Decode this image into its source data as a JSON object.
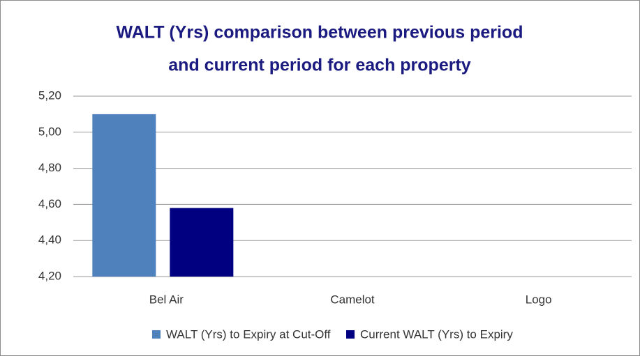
{
  "chart_data": {
    "type": "bar",
    "title": [
      "WALT (Yrs) comparison between previous period",
      "and current period for each property"
    ],
    "categories": [
      "Bel Air",
      "Camelot",
      "Logo"
    ],
    "series": [
      {
        "name": "WALT (Yrs) to Expiry at Cut-Off",
        "color": "#4f81bd",
        "values": [
          5.1,
          null,
          null
        ]
      },
      {
        "name": "Current WALT (Yrs) to Expiry",
        "color": "#000080",
        "values": [
          4.58,
          null,
          null
        ]
      }
    ],
    "ylim": [
      4.2,
      5.2
    ],
    "yticks": [
      {
        "value": 4.2,
        "label": "4,20"
      },
      {
        "value": 4.4,
        "label": "4,40"
      },
      {
        "value": 4.6,
        "label": "4,60"
      },
      {
        "value": 4.8,
        "label": "4,80"
      },
      {
        "value": 5.0,
        "label": "5,00"
      },
      {
        "value": 5.2,
        "label": "5,20"
      }
    ],
    "grid": true,
    "legend": "bottom"
  }
}
